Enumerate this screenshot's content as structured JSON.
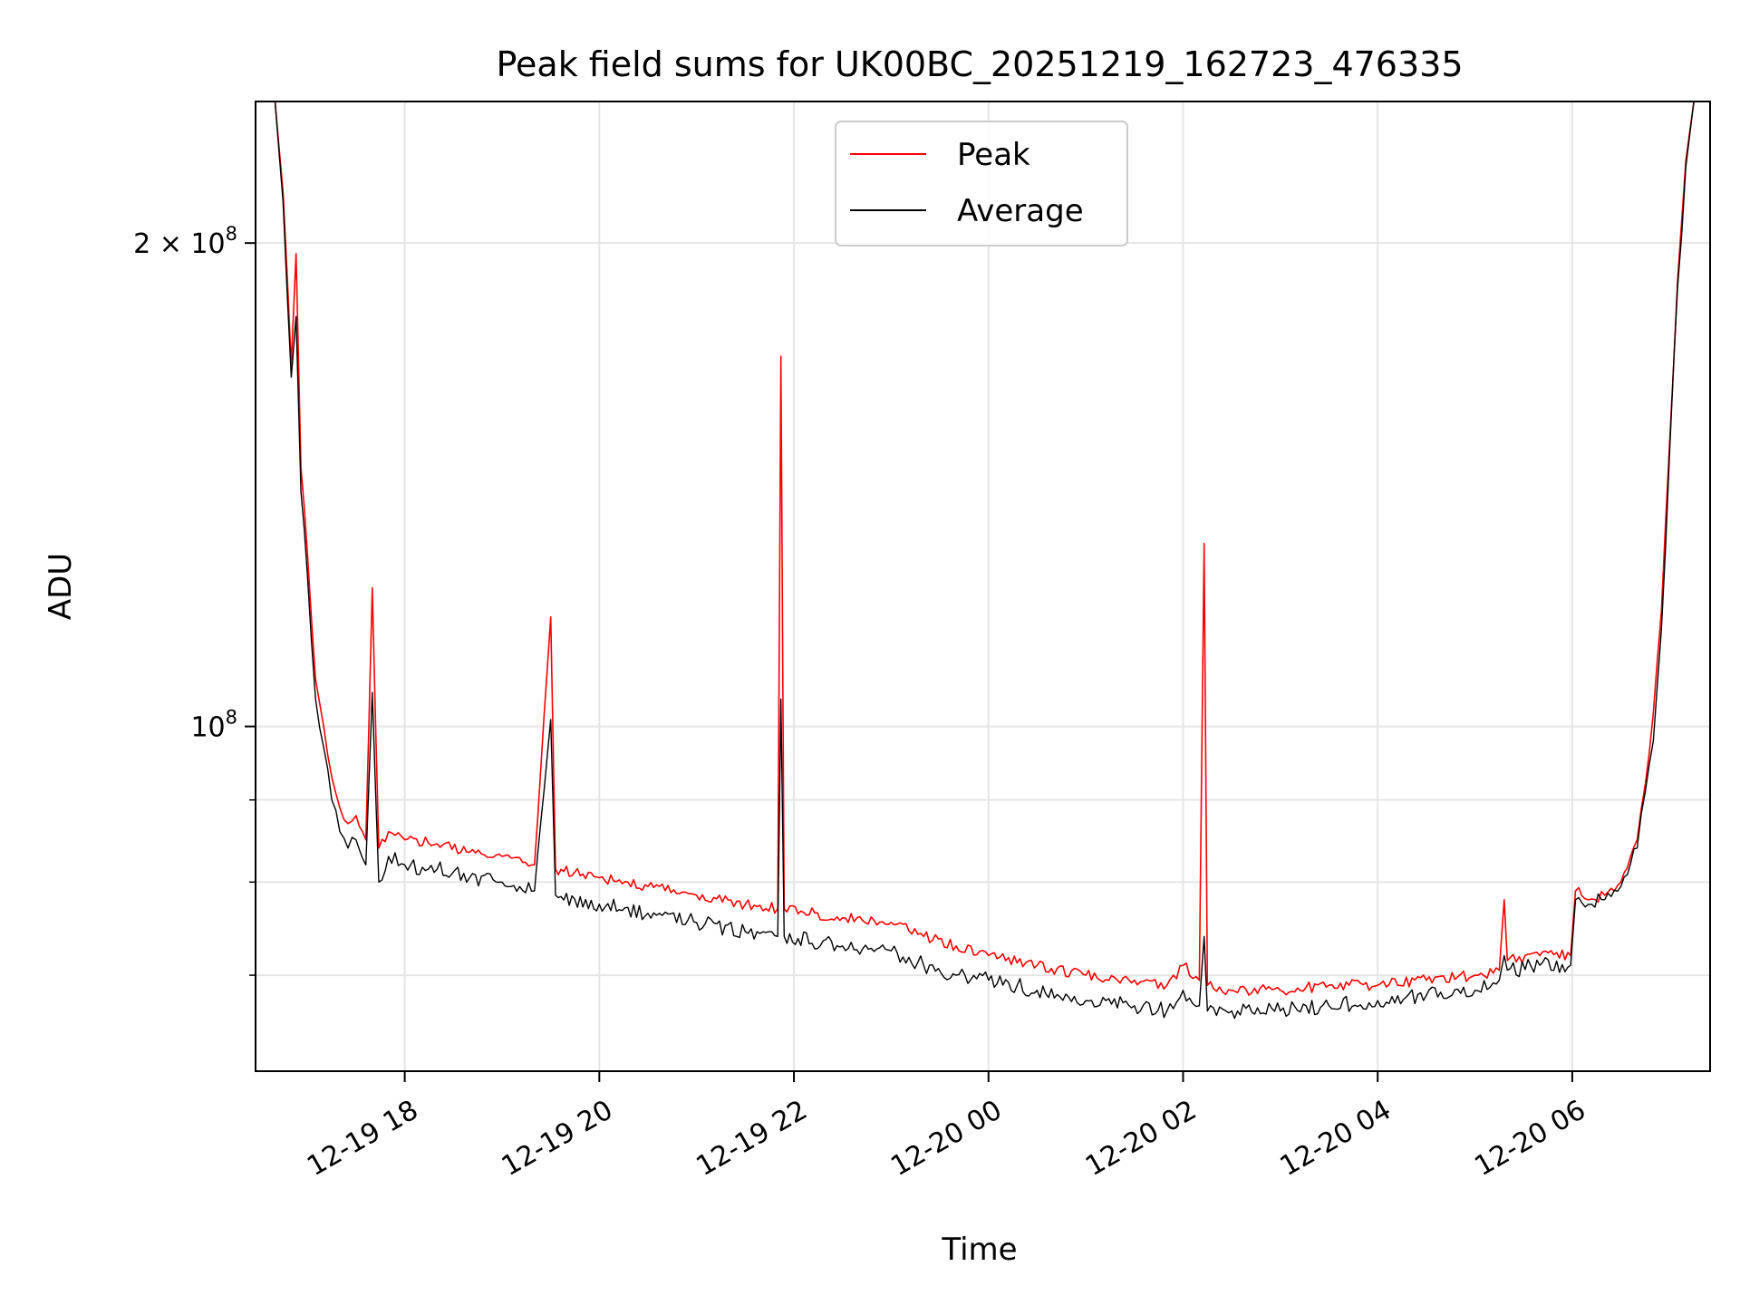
{
  "chart_data": {
    "type": "line",
    "title": "Peak field sums for UK00BC_20251219_162723_476335",
    "xlabel": "Time",
    "ylabel": "ADU",
    "yscale": "log",
    "grid": true,
    "legend_position": "top-center",
    "xlim": [
      "2025-12-19 16:28",
      "2025-12-20 07:25"
    ],
    "ylim": [
      61000000,
      245000000
    ],
    "x_ticks": [
      {
        "value": "2025-12-19 18:00",
        "label": "12-19 18"
      },
      {
        "value": "2025-12-19 20:00",
        "label": "12-19 20"
      },
      {
        "value": "2025-12-19 22:00",
        "label": "12-19 22"
      },
      {
        "value": "2025-12-20 00:00",
        "label": "12-20 00"
      },
      {
        "value": "2025-12-20 02:00",
        "label": "12-20 02"
      },
      {
        "value": "2025-12-20 04:00",
        "label": "12-20 04"
      },
      {
        "value": "2025-12-20 06:00",
        "label": "12-20 06"
      }
    ],
    "y_ticks_major": [
      {
        "value": 100000000,
        "base": "10",
        "exp": "8",
        "mantissa": ""
      },
      {
        "value": 200000000,
        "base": "10",
        "exp": "8",
        "mantissa": "2 × "
      }
    ],
    "y_ticks_minor": [
      60000000,
      70000000,
      80000000,
      90000000
    ],
    "series": [
      {
        "name": "Peak",
        "color": "#ff0000",
        "points": [
          [
            "2025-12-19 16:40",
            245000000
          ],
          [
            "2025-12-19 16:45",
            215000000
          ],
          [
            "2025-12-19 16:50",
            168000000
          ],
          [
            "2025-12-19 16:53",
            197000000
          ],
          [
            "2025-12-19 16:56",
            145000000
          ],
          [
            "2025-12-19 17:00",
            128000000
          ],
          [
            "2025-12-19 17:05",
            107000000
          ],
          [
            "2025-12-19 17:10",
            100000000
          ],
          [
            "2025-12-19 17:15",
            93000000
          ],
          [
            "2025-12-19 17:20",
            89000000
          ],
          [
            "2025-12-19 17:25",
            87000000
          ],
          [
            "2025-12-19 17:30",
            88000000
          ],
          [
            "2025-12-19 17:36",
            85000000
          ],
          [
            "2025-12-19 17:40",
            122000000
          ],
          [
            "2025-12-19 17:44",
            84000000
          ],
          [
            "2025-12-19 17:50",
            86000000
          ],
          [
            "2025-12-19 18:00",
            85000000
          ],
          [
            "2025-12-19 18:20",
            84500000
          ],
          [
            "2025-12-19 18:40",
            83500000
          ],
          [
            "2025-12-19 19:00",
            83000000
          ],
          [
            "2025-12-19 19:20",
            82000000
          ],
          [
            "2025-12-19 19:30",
            117000000
          ],
          [
            "2025-12-19 19:33",
            81500000
          ],
          [
            "2025-12-19 20:00",
            80500000
          ],
          [
            "2025-12-19 20:30",
            79500000
          ],
          [
            "2025-12-19 21:00",
            78500000
          ],
          [
            "2025-12-19 21:30",
            77500000
          ],
          [
            "2025-12-19 21:50",
            77000000
          ],
          [
            "2025-12-19 21:52",
            170000000
          ],
          [
            "2025-12-19 21:54",
            77000000
          ],
          [
            "2025-12-19 22:30",
            76000000
          ],
          [
            "2025-12-19 23:00",
            75500000
          ],
          [
            "2025-12-19 23:20",
            74000000
          ],
          [
            "2025-12-19 23:40",
            73000000
          ],
          [
            "2025-12-20 00:00",
            72000000
          ],
          [
            "2025-12-20 00:30",
            71000000
          ],
          [
            "2025-12-20 01:00",
            70000000
          ],
          [
            "2025-12-20 01:30",
            69500000
          ],
          [
            "2025-12-20 01:50",
            69000000
          ],
          [
            "2025-12-20 02:00",
            71000000
          ],
          [
            "2025-12-20 02:10",
            69500000
          ],
          [
            "2025-12-20 02:13",
            130000000
          ],
          [
            "2025-12-20 02:15",
            69000000
          ],
          [
            "2025-12-20 02:30",
            68500000
          ],
          [
            "2025-12-20 03:00",
            68500000
          ],
          [
            "2025-12-20 03:30",
            69000000
          ],
          [
            "2025-12-20 04:00",
            69000000
          ],
          [
            "2025-12-20 04:30",
            69500000
          ],
          [
            "2025-12-20 05:00",
            70000000
          ],
          [
            "2025-12-20 05:15",
            70500000
          ],
          [
            "2025-12-20 05:18",
            78000000
          ],
          [
            "2025-12-20 05:20",
            71500000
          ],
          [
            "2025-12-20 05:40",
            72000000
          ],
          [
            "2025-12-20 05:59",
            72000000
          ],
          [
            "2025-12-20 06:02",
            79000000
          ],
          [
            "2025-12-20 06:10",
            78000000
          ],
          [
            "2025-12-20 06:20",
            78500000
          ],
          [
            "2025-12-20 06:30",
            80000000
          ],
          [
            "2025-12-20 06:40",
            85000000
          ],
          [
            "2025-12-20 06:45",
            92000000
          ],
          [
            "2025-12-20 06:50",
            102000000
          ],
          [
            "2025-12-20 06:55",
            118000000
          ],
          [
            "2025-12-20 07:00",
            150000000
          ],
          [
            "2025-12-20 07:05",
            190000000
          ],
          [
            "2025-12-20 07:10",
            225000000
          ],
          [
            "2025-12-20 07:15",
            245000000
          ]
        ]
      },
      {
        "name": "Average",
        "color": "#000000",
        "points": [
          [
            "2025-12-19 16:40",
            245000000
          ],
          [
            "2025-12-19 16:45",
            212000000
          ],
          [
            "2025-12-19 16:50",
            165000000
          ],
          [
            "2025-12-19 16:53",
            180000000
          ],
          [
            "2025-12-19 16:56",
            140000000
          ],
          [
            "2025-12-19 17:00",
            124000000
          ],
          [
            "2025-12-19 17:05",
            104000000
          ],
          [
            "2025-12-19 17:10",
            97000000
          ],
          [
            "2025-12-19 17:15",
            90000000
          ],
          [
            "2025-12-19 17:20",
            86000000
          ],
          [
            "2025-12-19 17:25",
            84000000
          ],
          [
            "2025-12-19 17:30",
            85000000
          ],
          [
            "2025-12-19 17:36",
            82000000
          ],
          [
            "2025-12-19 17:40",
            105000000
          ],
          [
            "2025-12-19 17:44",
            80000000
          ],
          [
            "2025-12-19 17:50",
            83000000
          ],
          [
            "2025-12-19 18:00",
            82000000
          ],
          [
            "2025-12-19 18:20",
            81500000
          ],
          [
            "2025-12-19 18:40",
            80500000
          ],
          [
            "2025-12-19 19:00",
            80000000
          ],
          [
            "2025-12-19 19:20",
            79000000
          ],
          [
            "2025-12-19 19:30",
            101000000
          ],
          [
            "2025-12-19 19:33",
            78500000
          ],
          [
            "2025-12-19 20:00",
            77500000
          ],
          [
            "2025-12-19 20:30",
            76500000
          ],
          [
            "2025-12-19 21:00",
            75500000
          ],
          [
            "2025-12-19 21:30",
            74500000
          ],
          [
            "2025-12-19 21:50",
            74000000
          ],
          [
            "2025-12-19 21:52",
            104000000
          ],
          [
            "2025-12-19 21:54",
            74000000
          ],
          [
            "2025-12-19 22:30",
            73000000
          ],
          [
            "2025-12-19 23:00",
            72500000
          ],
          [
            "2025-12-19 23:20",
            71000000
          ],
          [
            "2025-12-19 23:40",
            70000000
          ],
          [
            "2025-12-20 00:00",
            69500000
          ],
          [
            "2025-12-20 00:30",
            68500000
          ],
          [
            "2025-12-20 01:00",
            67500000
          ],
          [
            "2025-12-20 01:30",
            67000000
          ],
          [
            "2025-12-20 01:50",
            66500000
          ],
          [
            "2025-12-20 02:00",
            68500000
          ],
          [
            "2025-12-20 02:10",
            67000000
          ],
          [
            "2025-12-20 02:13",
            74000000
          ],
          [
            "2025-12-20 02:15",
            66500000
          ],
          [
            "2025-12-20 02:30",
            66500000
          ],
          [
            "2025-12-20 03:00",
            66500000
          ],
          [
            "2025-12-20 03:30",
            67000000
          ],
          [
            "2025-12-20 04:00",
            67500000
          ],
          [
            "2025-12-20 04:30",
            68000000
          ],
          [
            "2025-12-20 05:00",
            68500000
          ],
          [
            "2025-12-20 05:15",
            69500000
          ],
          [
            "2025-12-20 05:18",
            72000000
          ],
          [
            "2025-12-20 05:20",
            70500000
          ],
          [
            "2025-12-20 05:40",
            71000000
          ],
          [
            "2025-12-20 05:59",
            71000000
          ],
          [
            "2025-12-20 06:02",
            78000000
          ],
          [
            "2025-12-20 06:10",
            77500000
          ],
          [
            "2025-12-20 06:20",
            78000000
          ],
          [
            "2025-12-20 06:30",
            79500000
          ],
          [
            "2025-12-20 06:40",
            84000000
          ],
          [
            "2025-12-20 06:45",
            91000000
          ],
          [
            "2025-12-20 06:50",
            98000000
          ],
          [
            "2025-12-20 06:55",
            115000000
          ],
          [
            "2025-12-20 07:00",
            148000000
          ],
          [
            "2025-12-20 07:05",
            188000000
          ],
          [
            "2025-12-20 07:10",
            223000000
          ],
          [
            "2025-12-20 07:15",
            245000000
          ]
        ]
      }
    ]
  }
}
